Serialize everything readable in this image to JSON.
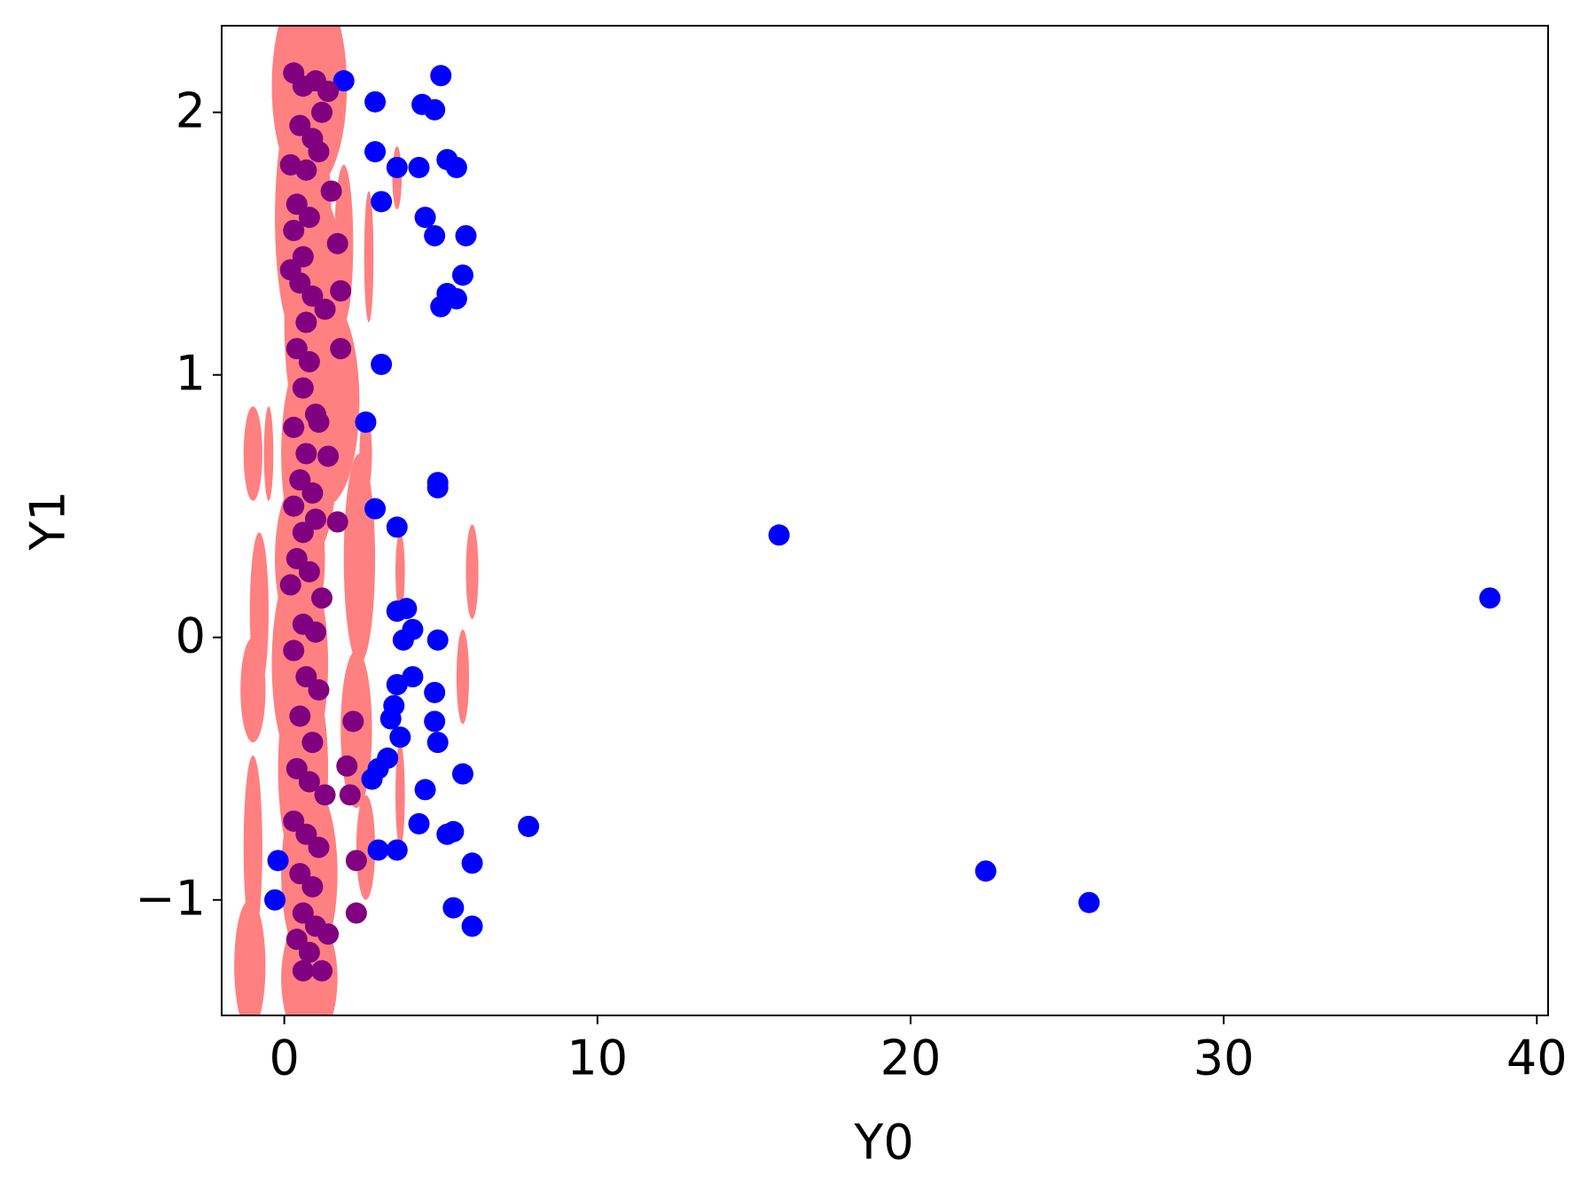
{
  "chart_data": {
    "type": "scatter",
    "xlabel": "Y0",
    "ylabel": "Y1",
    "xlim": [
      -2.0,
      40.36
    ],
    "ylim": [
      -1.44,
      2.33
    ],
    "xticks": [
      0,
      10,
      20,
      30,
      40
    ],
    "yticks": [
      {
        "value": -1,
        "label": "−1"
      },
      0,
      1,
      2
    ],
    "series": [
      {
        "marker": "ellipse",
        "color": "#ff8080",
        "x": [
          0.8,
          0.6,
          1.0,
          0.3,
          1.9,
          2.7,
          -1.0,
          -0.5,
          0.8,
          1.3,
          2.6,
          0.5,
          2.4,
          3.7,
          6.0,
          -0.8,
          0.5,
          5.7,
          -1.0,
          0.6,
          2.3,
          -1.0,
          0.8,
          3.7,
          -1.1,
          0.8,
          2.6,
          3.6
        ],
        "y": [
          2.1,
          1.6,
          1.2,
          1.5,
          1.5,
          1.45,
          0.7,
          0.7,
          0.7,
          0.9,
          0.7,
          0.3,
          0.3,
          0.25,
          0.25,
          0.1,
          -0.1,
          -0.15,
          -0.2,
          -0.5,
          -0.35,
          -0.8,
          -0.9,
          -0.6,
          -1.25,
          -1.3,
          -0.8,
          1.75
        ],
        "xerr": [
          1.2,
          0.9,
          1.0,
          0.4,
          0.3,
          0.15,
          0.3,
          0.15,
          0.9,
          1.1,
          0.2,
          0.8,
          0.5,
          0.15,
          0.2,
          0.3,
          0.9,
          0.2,
          0.4,
          0.8,
          0.5,
          0.3,
          0.9,
          0.15,
          0.5,
          0.9,
          0.3,
          0.15
        ],
        "yerr": [
          0.4,
          0.5,
          0.5,
          0.3,
          0.3,
          0.25,
          0.18,
          0.18,
          0.4,
          0.4,
          0.15,
          0.3,
          0.4,
          0.15,
          0.18,
          0.3,
          0.4,
          0.18,
          0.2,
          0.4,
          0.3,
          0.35,
          0.35,
          0.2,
          0.25,
          0.25,
          0.2,
          0.12
        ]
      },
      {
        "marker": "o",
        "color": "#0000ff",
        "x": [
          1.9,
          2.9,
          4.4,
          4.8,
          5.0,
          2.9,
          3.6,
          4.3,
          5.2,
          5.5,
          3.1,
          4.5,
          4.8,
          5.8,
          5.7,
          5.2,
          5.5,
          5.0,
          3.1,
          2.6,
          4.9,
          4.9,
          2.9,
          3.6,
          15.8,
          38.5,
          3.6,
          3.9,
          4.1,
          3.8,
          4.9,
          4.1,
          3.6,
          4.8,
          3.5,
          3.4,
          4.8,
          4.9,
          3.7,
          3.3,
          3.0,
          2.8,
          5.7,
          4.5,
          7.8,
          4.3,
          5.4,
          5.2,
          3.0,
          3.6,
          6.0,
          22.4,
          25.7,
          5.4,
          6.0,
          -0.2,
          -0.3
        ],
        "y": [
          2.12,
          2.04,
          2.03,
          2.01,
          2.14,
          1.85,
          1.79,
          1.79,
          1.82,
          1.79,
          1.66,
          1.6,
          1.53,
          1.53,
          1.38,
          1.31,
          1.29,
          1.26,
          1.04,
          0.82,
          0.59,
          0.57,
          0.49,
          0.42,
          0.39,
          0.15,
          0.1,
          0.11,
          0.03,
          -0.01,
          -0.01,
          -0.15,
          -0.18,
          -0.21,
          -0.26,
          -0.31,
          -0.32,
          -0.4,
          -0.38,
          -0.46,
          -0.5,
          -0.54,
          -0.52,
          -0.58,
          -0.72,
          -0.71,
          -0.74,
          -0.75,
          -0.81,
          -0.81,
          -0.86,
          -0.89,
          -1.01,
          -1.03,
          -1.1,
          -0.85,
          -1.0
        ]
      },
      {
        "marker": "o",
        "color": "#800080",
        "x": [
          0.3,
          0.6,
          1.0,
          1.4,
          0.5,
          0.9,
          1.2,
          0.2,
          0.7,
          1.1,
          0.4,
          0.8,
          1.5,
          0.3,
          0.6,
          1.7,
          0.5,
          0.9,
          1.8,
          0.2,
          0.7,
          1.3,
          0.4,
          0.8,
          1.8,
          0.6,
          1.0,
          0.3,
          0.7,
          1.1,
          0.5,
          0.9,
          1.4,
          0.3,
          0.6,
          1.0,
          1.7,
          0.4,
          0.8,
          1.2,
          0.2,
          0.6,
          1.0,
          0.3,
          0.7,
          1.1,
          2.2,
          0.5,
          0.9,
          2.0,
          0.4,
          0.8,
          1.3,
          2.1,
          0.3,
          0.7,
          1.1,
          2.3,
          0.5,
          0.9,
          0.6,
          1.0,
          1.4,
          0.4,
          0.8,
          0.6,
          1.2,
          2.3
        ],
        "y": [
          2.15,
          2.1,
          2.12,
          2.08,
          1.95,
          1.9,
          2.0,
          1.8,
          1.78,
          1.85,
          1.65,
          1.6,
          1.7,
          1.55,
          1.45,
          1.5,
          1.35,
          1.3,
          1.32,
          1.4,
          1.2,
          1.25,
          1.1,
          1.05,
          1.1,
          0.95,
          0.85,
          0.8,
          0.7,
          0.82,
          0.6,
          0.55,
          0.69,
          0.5,
          0.4,
          0.45,
          0.44,
          0.3,
          0.25,
          0.15,
          0.2,
          0.05,
          0.02,
          -0.05,
          -0.15,
          -0.2,
          -0.32,
          -0.3,
          -0.4,
          -0.49,
          -0.5,
          -0.55,
          -0.6,
          -0.6,
          -0.7,
          -0.75,
          -0.8,
          -0.85,
          -0.9,
          -0.95,
          -1.05,
          -1.1,
          -1.13,
          -1.15,
          -1.2,
          -1.27,
          -1.27,
          -1.05
        ]
      }
    ]
  }
}
